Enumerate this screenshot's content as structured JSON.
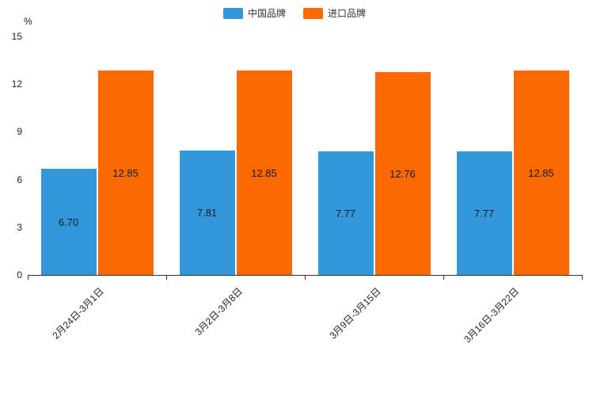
{
  "chart_data": {
    "type": "bar",
    "title": "",
    "ylabel": "%",
    "xlabel": "",
    "categories": [
      "2月24日-3月1日",
      "3月2日-3月8日",
      "3月9日-3月15日",
      "3月16日-3月22日"
    ],
    "series": [
      {
        "name": "中国品牌",
        "color": "#3398DB",
        "values": [
          6.7,
          7.81,
          7.77,
          7.77
        ]
      },
      {
        "name": "进口品牌",
        "color": "#FB6A02",
        "values": [
          12.85,
          12.85,
          12.76,
          12.85
        ]
      }
    ],
    "value_labels": {
      "中国品牌": [
        "6.70",
        "7.81",
        "7.77",
        "7.77"
      ],
      "进口品牌": [
        "12.85",
        "12.85",
        "12.76",
        "12.85"
      ]
    },
    "ylim": [
      0,
      15
    ],
    "yticks": [
      0,
      3,
      6,
      9,
      12,
      15
    ],
    "legend_position": "top",
    "grid": false
  }
}
